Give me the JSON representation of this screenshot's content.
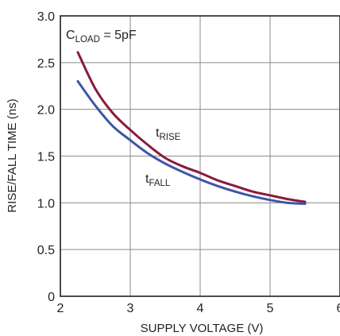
{
  "chart_data": {
    "type": "line",
    "xlabel": "SUPPLY VOLTAGE (V)",
    "ylabel": "RISE/FALL TIME (ns)",
    "xlim": [
      2,
      6
    ],
    "ylim": [
      0,
      3.0
    ],
    "x_ticks": [
      "2",
      "3",
      "4",
      "5",
      "6"
    ],
    "y_ticks": [
      "0",
      "0.5",
      "1.0",
      "1.5",
      "2.0",
      "2.5",
      "3.0"
    ],
    "grid": true,
    "condition": {
      "main": "C",
      "sub": "LOAD",
      "rest": " = 5pF"
    },
    "series": [
      {
        "name": "tRISE",
        "label_main": "t",
        "label_sub": "RISE",
        "color": "#8b1a3a",
        "x": [
          2.25,
          2.5,
          2.75,
          3.0,
          3.25,
          3.5,
          3.75,
          4.0,
          4.25,
          4.5,
          4.75,
          5.0,
          5.25,
          5.5
        ],
        "y": [
          2.61,
          2.22,
          1.96,
          1.78,
          1.62,
          1.48,
          1.39,
          1.32,
          1.24,
          1.18,
          1.12,
          1.08,
          1.04,
          1.01
        ]
      },
      {
        "name": "tFALL",
        "label_main": "t",
        "label_sub": "FALL",
        "color": "#3d56a6",
        "x": [
          2.25,
          2.5,
          2.75,
          3.0,
          3.25,
          3.5,
          3.75,
          4.0,
          4.25,
          4.5,
          4.75,
          5.0,
          5.25,
          5.5
        ],
        "y": [
          2.3,
          2.04,
          1.82,
          1.67,
          1.53,
          1.42,
          1.33,
          1.25,
          1.18,
          1.12,
          1.07,
          1.03,
          1.0,
          0.99
        ]
      }
    ]
  }
}
